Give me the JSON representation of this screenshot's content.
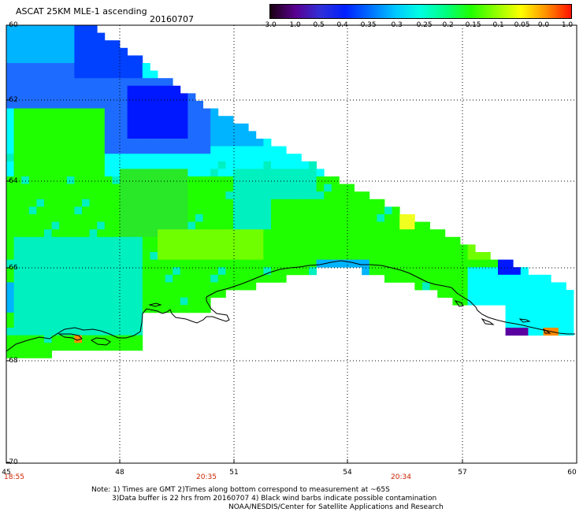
{
  "header": {
    "title": "ASCAT 25KM MLE-1 ascending",
    "date": "20160707"
  },
  "colorbar": {
    "labels": [
      "-3.0",
      "-1.0",
      "-0.5",
      "-0.4",
      "-0.35",
      "-0.3",
      "-0.25",
      "-0.2",
      "-0.15",
      "-0.1",
      "-0.05",
      "0.0",
      "1.0"
    ],
    "colors": [
      "#1a0010",
      "#5a0090",
      "#3030d8",
      "#0020ff",
      "#0070ff",
      "#00c8ff",
      "#00ffe0",
      "#00ff80",
      "#20ff00",
      "#90ff00",
      "#ffff00",
      "#ff9000",
      "#ff1000"
    ]
  },
  "axes": {
    "lat_labels": [
      "-60",
      "-62",
      "-64",
      "-66",
      "-68",
      "-70"
    ],
    "lon_labels": [
      "45",
      "48",
      "51",
      "54",
      "57",
      "60"
    ],
    "time_labels": [
      "18:55",
      "20:35",
      "20:34"
    ]
  },
  "footer": {
    "note_line1": "Note: 1) Times are GMT 2)Times along bottom correspond to measurement at ~65S",
    "note_line2": "3)Data buffer is 22 hrs from 20160707 4) Black wind barbs indicate possible contamination",
    "credit": "NOAA/NESDIS/Center for Satellite Applications and Research"
  },
  "map": {
    "colors": {
      "blue_dark": "#0018ff",
      "blue": "#0040ff",
      "blue_mid": "#1e6cff",
      "sky": "#00b4ff",
      "cyan": "#00ffff",
      "aqua": "#00f0c0",
      "green": "#20ff00",
      "green2": "#28e828",
      "lime": "#70ff00",
      "yellow": "#f0ff20",
      "orange": "#ff8a00",
      "purple": "#5a00a0",
      "coast": "#000000",
      "grid": "#000000"
    }
  }
}
